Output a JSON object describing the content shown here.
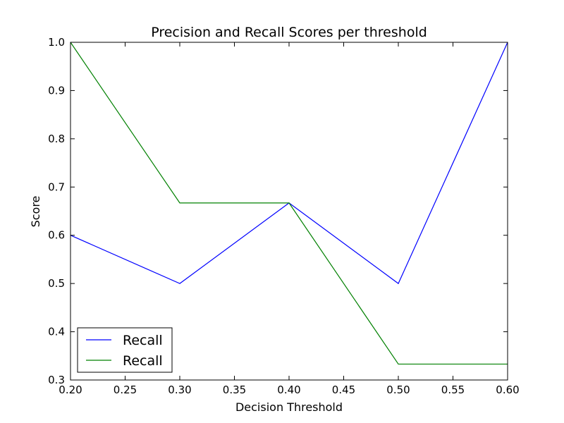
{
  "chart_data": {
    "type": "line",
    "title": "Precision and Recall Scores per threshold",
    "xlabel": "Decision Threshold",
    "ylabel": "Score",
    "xlim": [
      0.2,
      0.6
    ],
    "ylim": [
      0.3,
      1.0
    ],
    "x_ticks": [
      "0.20",
      "0.25",
      "0.30",
      "0.35",
      "0.40",
      "0.45",
      "0.50",
      "0.55",
      "0.60"
    ],
    "y_ticks": [
      "0.3",
      "0.4",
      "0.5",
      "0.6",
      "0.7",
      "0.8",
      "0.9",
      "1.0"
    ],
    "grid": false,
    "legend": "lower-left",
    "x": [
      0.2,
      0.3,
      0.4,
      0.5,
      0.6
    ],
    "series": [
      {
        "name": "Recall",
        "color": "#0000ff",
        "values": [
          0.6,
          0.5,
          0.667,
          0.5,
          1.0
        ]
      },
      {
        "name": "Recall",
        "color": "#008000",
        "values": [
          1.0,
          0.667,
          0.667,
          0.333,
          0.333
        ]
      }
    ]
  }
}
